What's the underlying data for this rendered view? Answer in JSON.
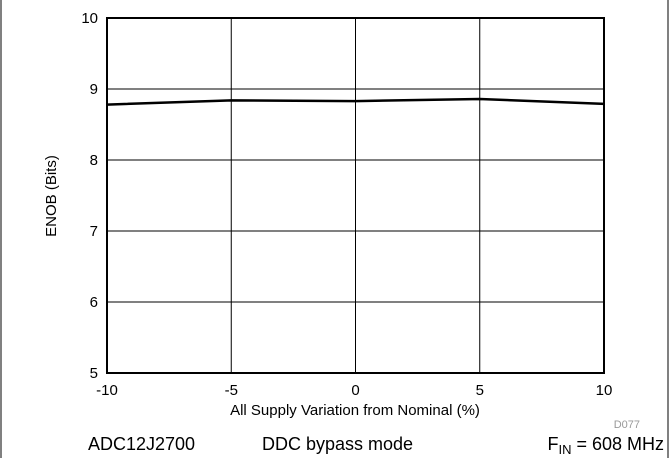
{
  "chart_data": {
    "type": "line",
    "x_label": "All Supply Variation from Nominal (%)",
    "y_label": "ENOB (Bits)",
    "x": [
      -10,
      -5,
      0,
      5,
      10
    ],
    "series": [
      {
        "color": "#000000",
        "values": [
          8.78,
          8.84,
          8.83,
          8.86,
          8.79
        ]
      }
    ],
    "xlim": [
      -10,
      10
    ],
    "xticks": [
      -10,
      -5,
      0,
      5,
      10
    ],
    "ylim": [
      5,
      10
    ],
    "yticks": [
      5,
      6,
      7,
      8,
      9,
      10
    ],
    "grid": true,
    "figure_id": "D077",
    "footer": {
      "device": "ADC12J2700",
      "mode": "DDC bypass mode",
      "fin": {
        "symbol": "F",
        "subscript": "IN",
        "rest": " = 608 MHz"
      }
    }
  }
}
